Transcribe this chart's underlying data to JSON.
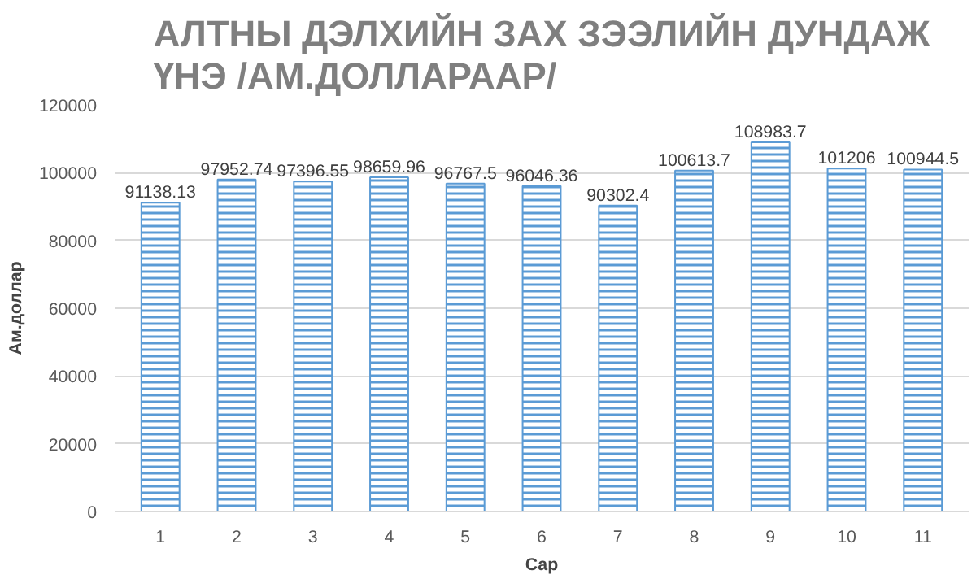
{
  "chart_data": {
    "type": "bar",
    "title": "АЛТНЫ ДЭЛХИЙН ЗАХ ЗЭЭЛИЙН ДУНДАЖ\nҮНЭ /АМ.ДОЛЛАРААР/",
    "xlabel": "Сар",
    "ylabel": "Ам.доллар",
    "categories": [
      "1",
      "2",
      "3",
      "4",
      "5",
      "6",
      "7",
      "8",
      "9",
      "10",
      "11"
    ],
    "values": [
      91138.13,
      97952.74,
      97396.55,
      98659.96,
      96767.5,
      96046.36,
      90302.4,
      100613.7,
      108983.7,
      101206,
      100944.5
    ],
    "value_labels": [
      "91138.13",
      "97952.74",
      "97396.55",
      "98659.96",
      "96767.5",
      "96046.36",
      "90302.4",
      "100613.7",
      "108983.7",
      "101206",
      "100944.5"
    ],
    "color": "#5b9bd5",
    "ylim": [
      0,
      120000
    ],
    "yticks": [
      0,
      20000,
      40000,
      60000,
      80000,
      100000,
      120000
    ],
    "grid": "y"
  }
}
